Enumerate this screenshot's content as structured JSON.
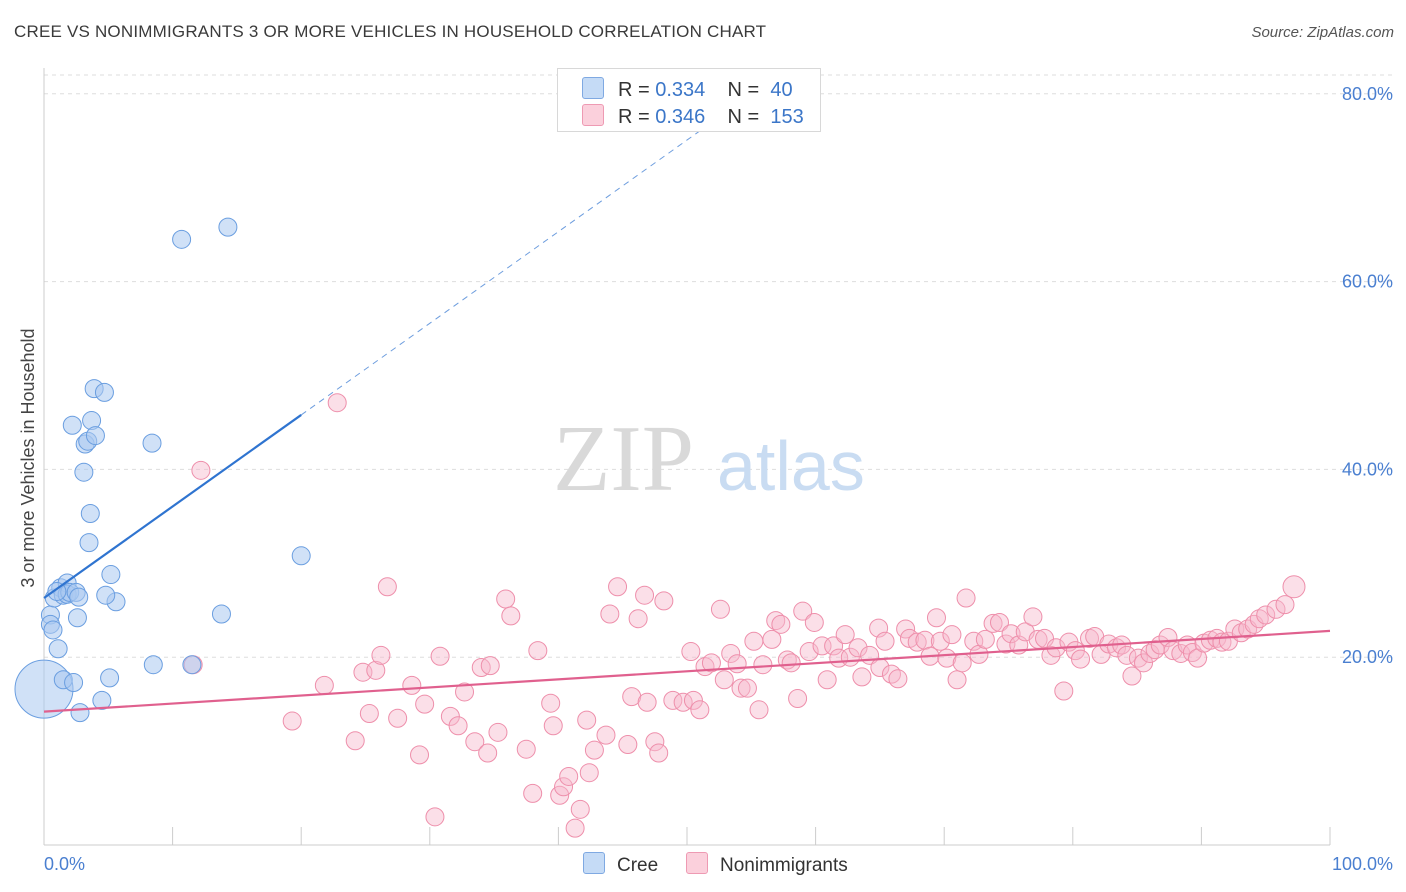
{
  "title": "CREE VS NONIMMIGRANTS 3 OR MORE VEHICLES IN HOUSEHOLD CORRELATION CHART",
  "source": "Source: ZipAtlas.com",
  "watermark": {
    "zip": "ZIP",
    "atlas": "atlas"
  },
  "legend": {
    "cree": {
      "r_label": "R =",
      "r_value": "0.334",
      "n_label": "N =",
      "n_value": "40"
    },
    "nonimmigrants": {
      "r_label": "R =",
      "r_value": "0.346",
      "n_label": "N =",
      "n_value": "153"
    }
  },
  "bottom_legend": {
    "cree": "Cree",
    "nonimmigrants": "Nonimmigrants"
  },
  "colors": {
    "cree_fill": "#aac8f0",
    "cree_stroke": "#6a9ee0",
    "cree_line": "#2f74d0",
    "non_fill": "#f7b8cb",
    "non_stroke": "#ee8fab",
    "non_line": "#e0608e",
    "axis_label": "#4a7fd0",
    "grid": "#dddddd"
  },
  "chart_data": {
    "type": "scatter",
    "title": "CREE VS NONIMMIGRANTS 3 OR MORE VEHICLES IN HOUSEHOLD CORRELATION CHART",
    "xlabel": "",
    "ylabel": "3 or more Vehicles in Household",
    "xlim": [
      0,
      100
    ],
    "ylim": [
      0,
      82
    ],
    "x_tick_labels": [
      "0.0%",
      "100.0%"
    ],
    "y_ticks": [
      20,
      40,
      60,
      80
    ],
    "y_tick_labels": [
      "20.0%",
      "40.0%",
      "60.0%",
      "80.0%"
    ],
    "grid": true,
    "legend_placement": "top-center",
    "series": [
      {
        "name": "Cree",
        "r": 0.334,
        "n": 40,
        "trend": {
          "solid": [
            [
              0,
              26.3
            ],
            [
              20,
              45.8
            ]
          ],
          "dashed": [
            [
              20,
              45.8
            ],
            [
              53,
              78
            ]
          ]
        },
        "points": [
          [
            0.0,
            16.6,
            30
          ],
          [
            0.5,
            24.5,
            10
          ],
          [
            0.5,
            23.5,
            10
          ],
          [
            0.7,
            22.9,
            10
          ],
          [
            0.8,
            26.3,
            10
          ],
          [
            1.1,
            20.9,
            10
          ],
          [
            1.3,
            27.4,
            10
          ],
          [
            1.5,
            26.6,
            10
          ],
          [
            1.5,
            17.6,
            10
          ],
          [
            1.8,
            27.9,
            10
          ],
          [
            1.8,
            26.7,
            10
          ],
          [
            2.0,
            26.9,
            10
          ],
          [
            2.3,
            17.3,
            10
          ],
          [
            2.2,
            44.7,
            10
          ],
          [
            2.5,
            26.9,
            10
          ],
          [
            2.6,
            24.2,
            10
          ],
          [
            2.7,
            26.4,
            10
          ],
          [
            2.8,
            14.1,
            10
          ],
          [
            3.1,
            39.7,
            10
          ],
          [
            3.2,
            42.7,
            10
          ],
          [
            3.4,
            43.0,
            10
          ],
          [
            3.5,
            32.2,
            10
          ],
          [
            3.6,
            35.3,
            10
          ],
          [
            3.7,
            45.2,
            10
          ],
          [
            3.9,
            48.6,
            10
          ],
          [
            4.0,
            43.6,
            10
          ],
          [
            4.5,
            15.4,
            10
          ],
          [
            4.7,
            48.2,
            10
          ],
          [
            5.1,
            17.8,
            10
          ],
          [
            5.2,
            28.8,
            10
          ],
          [
            5.6,
            25.9,
            10
          ],
          [
            8.4,
            42.8,
            10
          ],
          [
            8.5,
            19.2,
            10
          ],
          [
            10.7,
            64.5,
            10
          ],
          [
            11.5,
            19.2,
            10
          ],
          [
            13.8,
            24.6,
            10
          ],
          [
            14.3,
            65.8,
            10
          ],
          [
            20.0,
            30.8,
            10
          ],
          [
            4.8,
            26.6,
            10
          ],
          [
            1.0,
            27.0,
            10
          ]
        ]
      },
      {
        "name": "Nonimmigrants",
        "r": 0.346,
        "n": 153,
        "trend": {
          "solid": [
            [
              0,
              14.2
            ],
            [
              100,
              22.8
            ]
          ]
        },
        "points": [
          [
            11.6,
            19.2,
            10
          ],
          [
            12.2,
            39.9,
            10
          ],
          [
            19.3,
            13.2,
            10
          ],
          [
            21.8,
            17.0,
            10
          ],
          [
            22.8,
            47.1,
            10
          ],
          [
            24.2,
            11.1,
            10
          ],
          [
            24.8,
            18.4,
            10
          ],
          [
            25.3,
            14.0,
            10
          ],
          [
            25.8,
            18.6,
            10
          ],
          [
            26.2,
            20.2,
            10
          ],
          [
            26.7,
            27.5,
            10
          ],
          [
            27.5,
            13.5,
            10
          ],
          [
            28.6,
            17.0,
            10
          ],
          [
            29.2,
            9.6,
            10
          ],
          [
            29.6,
            15.0,
            10
          ],
          [
            30.4,
            3.0,
            10
          ],
          [
            30.8,
            20.1,
            10
          ],
          [
            31.6,
            13.7,
            10
          ],
          [
            32.2,
            12.7,
            10
          ],
          [
            32.7,
            16.3,
            10
          ],
          [
            33.5,
            11.0,
            10
          ],
          [
            34.0,
            18.9,
            10
          ],
          [
            34.5,
            9.8,
            10
          ],
          [
            34.7,
            19.1,
            10
          ],
          [
            35.3,
            12.0,
            10
          ],
          [
            35.9,
            26.2,
            10
          ],
          [
            36.3,
            24.4,
            10
          ],
          [
            37.5,
            10.2,
            10
          ],
          [
            38.0,
            5.5,
            10
          ],
          [
            38.4,
            20.7,
            10
          ],
          [
            39.4,
            15.1,
            10
          ],
          [
            39.6,
            12.7,
            10
          ],
          [
            40.1,
            5.3,
            10
          ],
          [
            40.4,
            6.2,
            10
          ],
          [
            40.8,
            7.3,
            10
          ],
          [
            41.3,
            1.8,
            10
          ],
          [
            41.7,
            3.8,
            10
          ],
          [
            42.2,
            13.3,
            10
          ],
          [
            42.4,
            7.7,
            10
          ],
          [
            42.8,
            10.1,
            10
          ],
          [
            43.7,
            11.7,
            10
          ],
          [
            44.0,
            24.6,
            10
          ],
          [
            44.6,
            27.5,
            10
          ],
          [
            45.4,
            10.7,
            10
          ],
          [
            45.7,
            15.8,
            10
          ],
          [
            46.2,
            24.1,
            10
          ],
          [
            46.7,
            26.6,
            10
          ],
          [
            46.9,
            15.2,
            10
          ],
          [
            47.5,
            11.0,
            10
          ],
          [
            47.8,
            9.8,
            10
          ],
          [
            48.2,
            26.0,
            10
          ],
          [
            48.9,
            15.4,
            10
          ],
          [
            49.7,
            15.2,
            10
          ],
          [
            50.3,
            20.6,
            10
          ],
          [
            50.5,
            15.4,
            10
          ],
          [
            51.0,
            14.4,
            10
          ],
          [
            51.4,
            19.0,
            10
          ],
          [
            51.9,
            19.4,
            10
          ],
          [
            52.6,
            25.1,
            10
          ],
          [
            52.9,
            17.6,
            10
          ],
          [
            53.4,
            20.4,
            10
          ],
          [
            53.9,
            19.3,
            10
          ],
          [
            54.2,
            16.7,
            10
          ],
          [
            54.7,
            16.7,
            10
          ],
          [
            55.2,
            21.7,
            10
          ],
          [
            55.6,
            14.4,
            10
          ],
          [
            55.9,
            19.2,
            10
          ],
          [
            56.6,
            21.9,
            10
          ],
          [
            56.9,
            23.9,
            10
          ],
          [
            57.3,
            23.5,
            10
          ],
          [
            57.8,
            19.7,
            10
          ],
          [
            58.1,
            19.4,
            10
          ],
          [
            58.6,
            15.6,
            10
          ],
          [
            59.0,
            24.9,
            10
          ],
          [
            59.5,
            20.6,
            10
          ],
          [
            59.9,
            23.7,
            10
          ],
          [
            60.5,
            21.2,
            10
          ],
          [
            60.9,
            17.6,
            10
          ],
          [
            61.4,
            21.2,
            10
          ],
          [
            61.8,
            19.9,
            10
          ],
          [
            62.3,
            22.4,
            10
          ],
          [
            62.7,
            20.0,
            10
          ],
          [
            63.3,
            21.0,
            10
          ],
          [
            63.6,
            17.9,
            10
          ],
          [
            64.2,
            20.2,
            10
          ],
          [
            64.9,
            23.1,
            10
          ],
          [
            65.0,
            18.9,
            10
          ],
          [
            65.4,
            21.7,
            10
          ],
          [
            65.9,
            18.2,
            10
          ],
          [
            66.4,
            17.7,
            10
          ],
          [
            67.0,
            23.0,
            10
          ],
          [
            67.3,
            22.0,
            10
          ],
          [
            67.9,
            21.6,
            10
          ],
          [
            68.5,
            21.8,
            10
          ],
          [
            68.9,
            20.1,
            10
          ],
          [
            69.4,
            24.2,
            10
          ],
          [
            69.7,
            21.7,
            10
          ],
          [
            70.2,
            19.9,
            10
          ],
          [
            70.6,
            22.4,
            10
          ],
          [
            71.0,
            17.6,
            10
          ],
          [
            71.4,
            19.4,
            10
          ],
          [
            71.7,
            26.3,
            10
          ],
          [
            72.3,
            21.7,
            10
          ],
          [
            72.7,
            20.3,
            10
          ],
          [
            73.2,
            21.9,
            10
          ],
          [
            73.8,
            23.6,
            10
          ],
          [
            74.3,
            23.7,
            10
          ],
          [
            74.8,
            21.4,
            10
          ],
          [
            75.2,
            22.5,
            10
          ],
          [
            75.8,
            21.3,
            10
          ],
          [
            76.3,
            22.7,
            10
          ],
          [
            76.9,
            24.3,
            10
          ],
          [
            77.3,
            21.9,
            10
          ],
          [
            77.8,
            22.0,
            10
          ],
          [
            78.3,
            20.2,
            10
          ],
          [
            78.7,
            21.0,
            10
          ],
          [
            79.3,
            16.4,
            10
          ],
          [
            79.7,
            21.6,
            10
          ],
          [
            80.2,
            20.7,
            10
          ],
          [
            80.6,
            19.8,
            10
          ],
          [
            81.3,
            22.0,
            10
          ],
          [
            81.7,
            22.2,
            10
          ],
          [
            82.2,
            20.3,
            10
          ],
          [
            82.8,
            21.4,
            10
          ],
          [
            83.4,
            21.0,
            10
          ],
          [
            83.8,
            21.3,
            10
          ],
          [
            84.2,
            20.2,
            10
          ],
          [
            84.6,
            18.0,
            10
          ],
          [
            85.1,
            19.9,
            10
          ],
          [
            85.5,
            19.4,
            10
          ],
          [
            86.0,
            20.4,
            10
          ],
          [
            86.4,
            20.8,
            10
          ],
          [
            86.8,
            21.3,
            10
          ],
          [
            87.4,
            22.1,
            10
          ],
          [
            87.8,
            20.7,
            10
          ],
          [
            88.4,
            20.4,
            10
          ],
          [
            88.9,
            21.3,
            10
          ],
          [
            89.3,
            20.5,
            10
          ],
          [
            89.7,
            19.9,
            10
          ],
          [
            90.2,
            21.5,
            10
          ],
          [
            90.7,
            21.8,
            10
          ],
          [
            91.2,
            22.0,
            10
          ],
          [
            91.6,
            21.6,
            10
          ],
          [
            92.1,
            21.7,
            10
          ],
          [
            92.6,
            23.0,
            10
          ],
          [
            93.1,
            22.6,
            10
          ],
          [
            93.6,
            23.0,
            10
          ],
          [
            94.1,
            23.5,
            10
          ],
          [
            94.5,
            24.1,
            10
          ],
          [
            95.0,
            24.5,
            10
          ],
          [
            95.8,
            25.1,
            10
          ],
          [
            96.5,
            25.6,
            10
          ],
          [
            97.2,
            27.5,
            12
          ]
        ]
      }
    ]
  }
}
